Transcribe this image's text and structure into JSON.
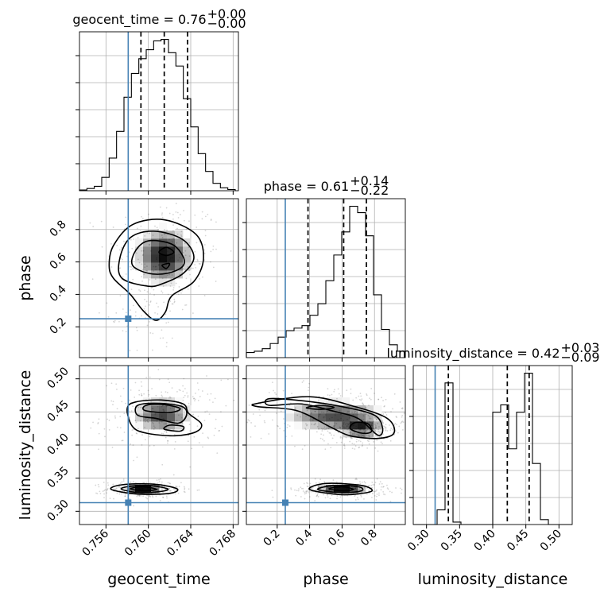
{
  "chart_data": {
    "type": "corner",
    "grid": true,
    "truth_color": "#4682b4",
    "hist_color": "#000000",
    "parameters": [
      {
        "name": "geocent_time",
        "axis_label": "geocent_time",
        "title_main": "geocent_time = 0.76",
        "title_plus": "+0.00",
        "title_minus": "−0.00",
        "range": [
          0.7535,
          0.7685
        ],
        "ticks": [
          0.756,
          0.76,
          0.764,
          0.768
        ],
        "tick_labels": [
          "0.756",
          "0.760",
          "0.764",
          "0.768"
        ],
        "truth": 0.7581,
        "quantiles": [
          0.7593,
          0.7615,
          0.7637
        ],
        "hist_bins": [
          0.7535,
          0.7542,
          0.7549,
          0.7556,
          0.7563,
          0.757,
          0.7577,
          0.7584,
          0.7591,
          0.7598,
          0.7605,
          0.7612,
          0.7619,
          0.7626,
          0.7633,
          0.764,
          0.7647,
          0.7654,
          0.7661,
          0.7668,
          0.7675,
          0.7682
        ],
        "hist_counts": [
          0.5,
          1.5,
          3,
          9,
          22,
          40,
          63,
          79,
          89,
          95,
          101,
          102,
          93,
          84,
          62,
          43,
          25,
          13,
          5,
          2,
          0.8
        ]
      },
      {
        "name": "phase",
        "axis_label": "phase",
        "title_main": "phase = 0.61",
        "title_plus": "+0.14",
        "title_minus": "−0.22",
        "range": [
          0.01,
          0.99
        ],
        "ticks": [
          0.2,
          0.4,
          0.6,
          0.8
        ],
        "tick_labels": [
          "0.2",
          "0.4",
          "0.6",
          "0.8"
        ],
        "truth": 0.25,
        "quantiles": [
          0.39,
          0.61,
          0.75
        ],
        "hist_bins": [
          0.01,
          0.059,
          0.108,
          0.157,
          0.206,
          0.255,
          0.304,
          0.353,
          0.402,
          0.451,
          0.5,
          0.549,
          0.598,
          0.647,
          0.696,
          0.745,
          0.794,
          0.843,
          0.892,
          0.941,
          0.99
        ],
        "hist_counts": [
          4,
          5,
          7,
          11,
          16,
          21,
          23,
          25,
          33,
          42,
          60,
          80,
          98,
          118,
          113,
          95,
          49,
          22,
          10,
          5
        ]
      },
      {
        "name": "luminosity_distance",
        "axis_label": "luminosity_distance",
        "title_main": "luminosity_distance = 0.42",
        "title_plus": "+0.03",
        "title_minus": "−0.09",
        "range": [
          0.28,
          0.52
        ],
        "ticks": [
          0.3,
          0.35,
          0.4,
          0.45,
          0.5
        ],
        "tick_labels": [
          "0.30",
          "0.35",
          "0.40",
          "0.45",
          "0.50"
        ],
        "truth": 0.313,
        "quantiles": [
          0.333,
          0.422,
          0.455
        ],
        "hist_bins": [
          0.28,
          0.292,
          0.304,
          0.316,
          0.328,
          0.34,
          0.352,
          0.364,
          0.376,
          0.388,
          0.4,
          0.412,
          0.424,
          0.436,
          0.448,
          0.46,
          0.472,
          0.484,
          0.496,
          0.508,
          0.52
        ],
        "hist_counts": [
          0,
          0,
          0,
          6,
          58,
          1,
          0,
          0,
          0,
          0,
          46,
          49,
          31,
          46,
          62,
          25,
          2,
          0,
          0,
          0
        ]
      }
    ],
    "pairs": [
      {
        "x_param": "geocent_time",
        "y_param": "phase",
        "density": [
          {
            "cx": 0.7615,
            "cy": 0.64,
            "sx": 0.0017,
            "sy": 0.11,
            "w": 1.0
          },
          {
            "cx": 0.7602,
            "cy": 0.28,
            "sx": 0.0012,
            "sy": 0.09,
            "w": 0.25
          }
        ],
        "levels": [
          [
            [
              0.7585,
              0.58
            ],
            [
              0.76,
              0.53
            ],
            [
              0.7618,
              0.53
            ],
            [
              0.7632,
              0.57
            ],
            [
              0.7633,
              0.63
            ],
            [
              0.7622,
              0.71
            ],
            [
              0.76,
              0.73
            ],
            [
              0.7588,
              0.67
            ]
          ],
          [
            [
              0.7575,
              0.5
            ],
            [
              0.76,
              0.45
            ],
            [
              0.7615,
              0.47
            ],
            [
              0.7633,
              0.53
            ],
            [
              0.7643,
              0.63
            ],
            [
              0.7632,
              0.74
            ],
            [
              0.7605,
              0.79
            ],
            [
              0.7583,
              0.75
            ],
            [
              0.7573,
              0.62
            ]
          ],
          [
            [
              0.7567,
              0.5
            ],
            [
              0.7583,
              0.4
            ],
            [
              0.7595,
              0.3
            ],
            [
              0.7607,
              0.24
            ],
            [
              0.7616,
              0.29
            ],
            [
              0.7622,
              0.39
            ],
            [
              0.7643,
              0.48
            ],
            [
              0.7652,
              0.62
            ],
            [
              0.7645,
              0.77
            ],
            [
              0.7615,
              0.86
            ],
            [
              0.7585,
              0.83
            ],
            [
              0.7567,
              0.7
            ],
            [
              0.7563,
              0.58
            ]
          ]
        ],
        "small_contours": [
          [
            [
              0.761,
              0.66
            ],
            [
              0.7617,
              0.64
            ],
            [
              0.7624,
              0.66
            ],
            [
              0.7617,
              0.69
            ]
          ],
          [
            [
              0.7613,
              0.58
            ],
            [
              0.7617,
              0.56
            ],
            [
              0.762,
              0.59
            ]
          ]
        ]
      },
      {
        "x_param": "geocent_time",
        "y_param": "luminosity_distance",
        "density": [
          {
            "cx": 0.7613,
            "cy": 0.445,
            "sx": 0.0018,
            "sy": 0.017,
            "w": 1.0
          },
          {
            "cx": 0.7595,
            "cy": 0.333,
            "sx": 0.0011,
            "sy": 0.004,
            "w": 1.3
          }
        ],
        "levels": [
          [
            [
              0.7597,
              0.452
            ],
            [
              0.762,
              0.449
            ],
            [
              0.763,
              0.455
            ],
            [
              0.7615,
              0.461
            ],
            [
              0.7598,
              0.46
            ]
          ],
          [
            [
              0.759,
              0.445
            ],
            [
              0.7608,
              0.44
            ],
            [
              0.7628,
              0.433
            ],
            [
              0.7636,
              0.445
            ],
            [
              0.7632,
              0.458
            ],
            [
              0.761,
              0.463
            ],
            [
              0.759,
              0.46
            ]
          ],
          [
            [
              0.7585,
              0.428
            ],
            [
              0.7598,
              0.418
            ],
            [
              0.7625,
              0.414
            ],
            [
              0.7645,
              0.42
            ],
            [
              0.765,
              0.432
            ],
            [
              0.7638,
              0.448
            ],
            [
              0.7633,
              0.462
            ],
            [
              0.7612,
              0.468
            ],
            [
              0.7588,
              0.465
            ],
            [
              0.758,
              0.455
            ]
          ],
          [
            [
              0.7583,
              0.334
            ],
            [
              0.7595,
              0.331
            ],
            [
              0.7608,
              0.333
            ],
            [
              0.7595,
              0.337
            ]
          ],
          [
            [
              0.7575,
              0.333
            ],
            [
              0.7592,
              0.328
            ],
            [
              0.7612,
              0.33
            ],
            [
              0.7618,
              0.334
            ],
            [
              0.76,
              0.339
            ],
            [
              0.758,
              0.337
            ]
          ],
          [
            [
              0.7565,
              0.333
            ],
            [
              0.759,
              0.326
            ],
            [
              0.762,
              0.327
            ],
            [
              0.7627,
              0.334
            ],
            [
              0.7605,
              0.341
            ],
            [
              0.7575,
              0.34
            ]
          ]
        ],
        "small_contours": [
          [
            [
              0.7615,
              0.424
            ],
            [
              0.763,
              0.421
            ],
            [
              0.7633,
              0.428
            ],
            [
              0.762,
              0.43
            ]
          ]
        ]
      },
      {
        "x_param": "phase",
        "y_param": "luminosity_distance",
        "density": [
          {
            "cx": 0.55,
            "cy": 0.445,
            "sx": 0.2,
            "sy": 0.015,
            "w": 1.0
          },
          {
            "cx": 0.72,
            "cy": 0.425,
            "sx": 0.08,
            "sy": 0.008,
            "w": 0.9
          },
          {
            "cx": 0.6,
            "cy": 0.333,
            "sx": 0.09,
            "sy": 0.004,
            "w": 1.3
          }
        ],
        "levels": [
          [
            [
              0.38,
              0.456
            ],
            [
              0.48,
              0.454
            ],
            [
              0.55,
              0.457
            ],
            [
              0.46,
              0.46
            ]
          ],
          [
            [
              0.65,
              0.425
            ],
            [
              0.72,
              0.418
            ],
            [
              0.78,
              0.42
            ],
            [
              0.76,
              0.432
            ],
            [
              0.68,
              0.434
            ]
          ],
          [
            [
              0.15,
              0.46
            ],
            [
              0.35,
              0.462
            ],
            [
              0.55,
              0.451
            ],
            [
              0.7,
              0.44
            ],
            [
              0.82,
              0.415
            ],
            [
              0.85,
              0.425
            ],
            [
              0.8,
              0.445
            ],
            [
              0.6,
              0.458
            ],
            [
              0.35,
              0.467
            ],
            [
              0.15,
              0.47
            ]
          ],
          [
            [
              0.08,
              0.463
            ],
            [
              0.4,
              0.473
            ],
            [
              0.68,
              0.458
            ],
            [
              0.88,
              0.44
            ],
            [
              0.92,
              0.418
            ],
            [
              0.82,
              0.41
            ],
            [
              0.65,
              0.414
            ],
            [
              0.53,
              0.427
            ],
            [
              0.32,
              0.452
            ],
            [
              0.08,
              0.458
            ]
          ],
          [
            [
              0.52,
              0.334
            ],
            [
              0.6,
              0.331
            ],
            [
              0.67,
              0.333
            ],
            [
              0.6,
              0.337
            ]
          ],
          [
            [
              0.45,
              0.333
            ],
            [
              0.6,
              0.328
            ],
            [
              0.72,
              0.331
            ],
            [
              0.7,
              0.337
            ],
            [
              0.55,
              0.339
            ]
          ],
          [
            [
              0.4,
              0.333
            ],
            [
              0.6,
              0.325
            ],
            [
              0.78,
              0.33
            ],
            [
              0.72,
              0.339
            ],
            [
              0.5,
              0.342
            ]
          ]
        ],
        "small_contours": []
      }
    ]
  }
}
